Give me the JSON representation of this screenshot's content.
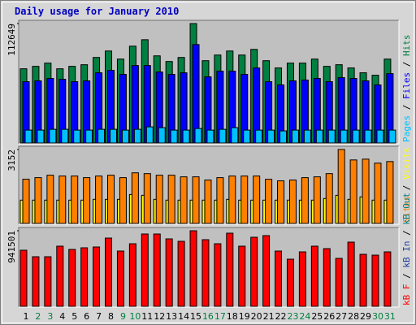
{
  "chart_data": {
    "type": "bar",
    "title": "Daily usage for January 2010",
    "title_color": "#0000c0",
    "categories": [
      "1",
      "2",
      "3",
      "4",
      "5",
      "6",
      "7",
      "8",
      "9",
      "10",
      "11",
      "12",
      "13",
      "14",
      "15",
      "16",
      "17",
      "18",
      "19",
      "20",
      "21",
      "22",
      "23",
      "24",
      "25",
      "26",
      "27",
      "28",
      "29",
      "30",
      "31"
    ],
    "category_colors": [
      "#000000",
      "#008040",
      "#008040",
      "#000000",
      "#000000",
      "#000000",
      "#000000",
      "#000000",
      "#008040",
      "#008040",
      "#000000",
      "#000000",
      "#000000",
      "#000000",
      "#000000",
      "#008040",
      "#008040",
      "#000000",
      "#000000",
      "#000000",
      "#000000",
      "#000000",
      "#008040",
      "#008040",
      "#000000",
      "#000000",
      "#000000",
      "#000000",
      "#000000",
      "#008040",
      "#008040"
    ],
    "legend_separator": " / ",
    "panels": [
      {
        "ylim": [
          0,
          112649
        ],
        "yticks": [
          112649
        ],
        "series": [
          {
            "name": "Pages",
            "color": "#00c0ff",
            "values": [
              12180,
              12180,
              12940,
              12940,
              12180,
              12180,
              12940,
              12940,
              12180,
              12940,
              15220,
              14460,
              12180,
              12180,
              13700,
              12180,
              12940,
              14460,
              12180,
              12180,
              12180,
              11420,
              12180,
              12180,
              12180,
              12180,
              12180,
              12180,
              12180,
              12180,
              12180
            ]
          },
          {
            "name": "Files",
            "color": "#0000ff",
            "values": [
              57840,
              58600,
              60890,
              60130,
              57840,
              58600,
              66220,
              68500,
              64690,
              73070,
              73070,
              66980,
              64690,
              66220,
              92850,
              62410,
              67740,
              67740,
              64690,
              70780,
              57840,
              54800,
              58600,
              59370,
              60890,
              57840,
              61650,
              60890,
              58600,
              54800,
              65450
            ]
          },
          {
            "name": "Hits",
            "color": "#008040",
            "values": [
              70000,
              72300,
              75350,
              70000,
              72300,
              73830,
              80680,
              86770,
              79150,
              91330,
              97420,
              82200,
              76870,
              80680,
              112649,
              77630,
              82960,
              86770,
              82960,
              88290,
              77630,
              70780,
              75350,
              75350,
              79150,
              72300,
              73830,
              70780,
              66220,
              63930,
              79150
            ]
          }
        ]
      },
      {
        "ylim": [
          0,
          3152
        ],
        "yticks": [
          3152
        ],
        "series": [
          {
            "name": "Sites",
            "color": "#ff8000",
            "values": [
              1884,
              1953,
              2056,
              2021,
              2021,
              1953,
              2021,
              2056,
              1953,
              2158,
              2124,
              2056,
              2056,
              1987,
              1987,
              1850,
              1953,
              2021,
              2021,
              2021,
              1884,
              1816,
              1850,
              1953,
              1987,
              2124,
              3152,
              2707,
              2741,
              2570,
              2638
            ]
          },
          {
            "name": "Visits",
            "color": "#ffff00",
            "values": [
              994,
              994,
              994,
              994,
              994,
              994,
              1028,
              1028,
              1028,
              1233,
              1199,
              1028,
              994,
              994,
              994,
              994,
              994,
              1028,
              994,
              994,
              994,
              994,
              994,
              994,
              994,
              1062,
              1199,
              1028,
              1131,
              994,
              994
            ]
          }
        ]
      },
      {
        "ylim": [
          0,
          941501
        ],
        "yticks": [
          941501
        ],
        "series": [
          {
            "name": "kB F",
            "color": "#ff0000",
            "values": [
              698600,
              617600,
              617600,
              749200,
              708700,
              728900,
              739100,
              850400,
              688400,
              779500,
              901000,
              901000,
              840300,
              809900,
              941501,
              830200,
              779500,
              911200,
              749200,
              860500,
              880800,
              688400,
              587200,
              678300,
              749200,
              718800,
              597300,
              799800,
              647900,
              637800,
              678300
            ]
          },
          {
            "name": "kB In",
            "color": "#2040a0"
          },
          {
            "name": "kB Out",
            "color": "#008080"
          }
        ]
      }
    ]
  }
}
